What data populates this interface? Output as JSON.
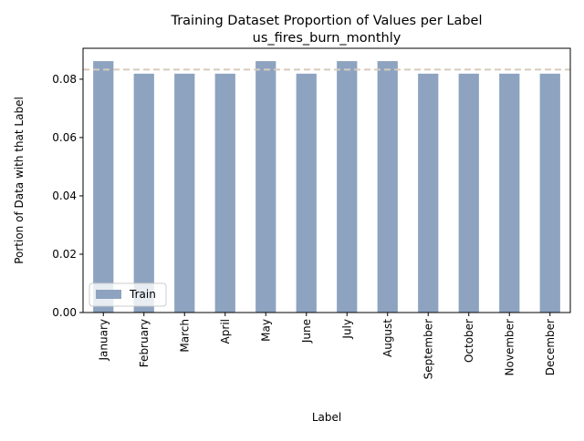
{
  "chart_data": {
    "type": "bar",
    "title": "Training Dataset Proportion of Values per Label",
    "subtitle": "us_fires_burn_monthly",
    "xlabel": "Label",
    "ylabel": "Portion of Data with that Label",
    "categories": [
      "January",
      "February",
      "March",
      "April",
      "May",
      "June",
      "July",
      "August",
      "September",
      "October",
      "November",
      "December"
    ],
    "series": [
      {
        "name": "Train",
        "color": "#8da3c0",
        "values": [
          0.0862,
          0.0819,
          0.0819,
          0.0819,
          0.0862,
          0.0819,
          0.0862,
          0.0862,
          0.0819,
          0.0819,
          0.0819,
          0.0819
        ]
      }
    ],
    "reference_line": {
      "value": 0.0833,
      "color": "#d8cbbc",
      "style": "dashed"
    },
    "ylim": [
      0,
      0.0906
    ],
    "yticks": [
      "0.00",
      "0.02",
      "0.04",
      "0.06",
      "0.08"
    ],
    "ytick_values": [
      0,
      0.02,
      0.04,
      0.06,
      0.08
    ],
    "legend": {
      "position": "lower-left",
      "label": "Train"
    },
    "grid": false
  }
}
